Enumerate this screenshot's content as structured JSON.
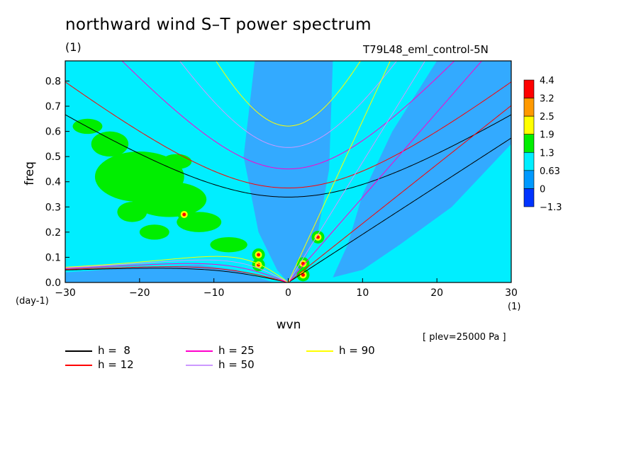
{
  "chart_data": {
    "type": "heatmap",
    "title": "northward wind S–T power spectrum",
    "units_label": "(1)",
    "experiment": "T79L48_eml_control-5N",
    "xlabel": "wvn",
    "ylabel": "freq",
    "y_unit": "(day-1)",
    "x_unit": "(1)",
    "xlim": [
      -30,
      30
    ],
    "ylim": [
      0,
      0.88
    ],
    "xticks": [
      "−30",
      "−20",
      "−10",
      "0",
      "10",
      "20",
      "30"
    ],
    "xtick_values": [
      -30,
      -20,
      -10,
      0,
      10,
      20,
      30
    ],
    "yticks": [
      "0.0",
      "0.1",
      "0.2",
      "0.3",
      "0.4",
      "0.5",
      "0.6",
      "0.7",
      "0.8"
    ],
    "ytick_values": [
      0,
      0.1,
      0.2,
      0.3,
      0.4,
      0.5,
      0.6,
      0.7,
      0.8
    ],
    "colorbar": {
      "levels": [
        "4.4",
        "3.2",
        "2.5",
        "1.9",
        "1.3",
        "0.63",
        "0",
        "−1.3"
      ],
      "colors": [
        "#ff0000",
        "#ff9900",
        "#ffff00",
        "#00ee00",
        "#00eeff",
        "#0099ff",
        "#0033ff"
      ]
    },
    "background_level_color": "#00eeff",
    "low_region_color": "#33aaff",
    "plevel_note": "[ plev=25000 Pa ]",
    "dispersion_curves": [
      {
        "label": "h =  8",
        "h": 8,
        "color": "#000000"
      },
      {
        "label": "h = 12",
        "h": 12,
        "color": "#ff0000"
      },
      {
        "label": "h = 25",
        "h": 25,
        "color": "#ff00cc"
      },
      {
        "label": "h = 50",
        "h": 50,
        "color": "#cc99ff"
      },
      {
        "label": "h = 90",
        "h": 90,
        "color": "#ffff00"
      }
    ],
    "grid": false,
    "legend_position": "bottom-left"
  }
}
